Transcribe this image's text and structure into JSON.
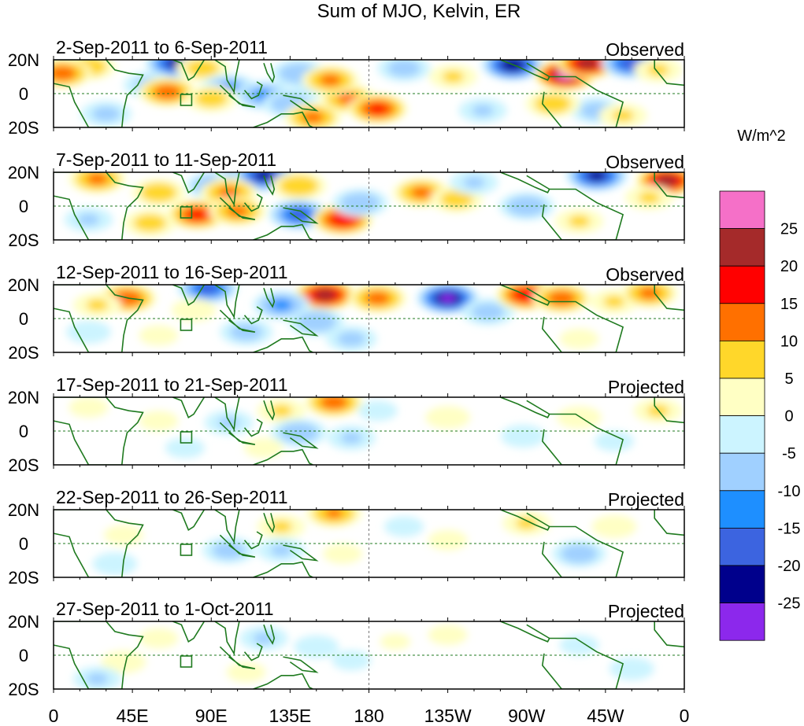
{
  "chart_data": {
    "type": "heatmap",
    "title": "Sum of MJO, Kelvin, ER",
    "units_label": "W/m^2",
    "lat_labels": [
      "20N",
      "0",
      "20S"
    ],
    "lat_range": [
      -20,
      20
    ],
    "lon_range": [
      0,
      360
    ],
    "x_ticks": [
      {
        "lon": 0,
        "label": "0"
      },
      {
        "lon": 45,
        "label": "45E"
      },
      {
        "lon": 90,
        "label": "90E"
      },
      {
        "lon": 135,
        "label": "135E"
      },
      {
        "lon": 180,
        "label": "180"
      },
      {
        "lon": 225,
        "label": "135W"
      },
      {
        "lon": 270,
        "label": "90W"
      },
      {
        "lon": 315,
        "label": "45W"
      },
      {
        "lon": 360,
        "label": "0"
      }
    ],
    "colorbar": {
      "colors": [
        "#f570c8",
        "#a52a2a",
        "#ff0000",
        "#ff7000",
        "#ffd72a",
        "#ffffc4",
        "#ccf4ff",
        "#a0d0ff",
        "#1e8fff",
        "#3c64e0",
        "#00008c",
        "#8c28ec"
      ],
      "tick_labels": [
        "25",
        "20",
        "15",
        "10",
        "5",
        "0",
        "-5",
        "-10",
        "-15",
        "-20",
        "-25"
      ]
    },
    "panels": [
      {
        "date_range": "2-Sep-2011 to 6-Sep-2011",
        "status": "Observed",
        "anomalies": [
          {
            "lon": 20,
            "lat": 16,
            "v": 9
          },
          {
            "lon": 5,
            "lat": 12,
            "v": 14
          },
          {
            "lon": 70,
            "lat": 18,
            "v": -22
          },
          {
            "lon": 85,
            "lat": 15,
            "v": 8
          },
          {
            "lon": 55,
            "lat": 5,
            "v": -8
          },
          {
            "lon": 100,
            "lat": 3,
            "v": -12
          },
          {
            "lon": 65,
            "lat": 1,
            "v": 14
          },
          {
            "lon": 90,
            "lat": -3,
            "v": 8
          },
          {
            "lon": 120,
            "lat": -1,
            "v": -12
          },
          {
            "lon": 135,
            "lat": -6,
            "v": -10
          },
          {
            "lon": 150,
            "lat": 6,
            "v": -8
          },
          {
            "lon": 148,
            "lat": -14,
            "v": 12
          },
          {
            "lon": 168,
            "lat": -3,
            "v": 12
          },
          {
            "lon": 185,
            "lat": -9,
            "v": 17
          },
          {
            "lon": 140,
            "lat": 12,
            "v": -10
          },
          {
            "lon": 158,
            "lat": 8,
            "v": 12
          },
          {
            "lon": 200,
            "lat": 15,
            "v": -8
          },
          {
            "lon": 228,
            "lat": 10,
            "v": 6
          },
          {
            "lon": 262,
            "lat": 17,
            "v": -25
          },
          {
            "lon": 292,
            "lat": 11,
            "v": 27
          },
          {
            "lon": 305,
            "lat": 18,
            "v": 24
          },
          {
            "lon": 330,
            "lat": 18,
            "v": -20
          },
          {
            "lon": 345,
            "lat": 14,
            "v": 6
          },
          {
            "lon": 310,
            "lat": -10,
            "v": -8
          },
          {
            "lon": 285,
            "lat": -6,
            "v": 9
          },
          {
            "lon": 325,
            "lat": -13,
            "v": 6
          },
          {
            "lon": 30,
            "lat": -12,
            "v": -7
          },
          {
            "lon": 245,
            "lat": -10,
            "v": -6
          }
        ]
      },
      {
        "date_range": "7-Sep-2011 to 11-Sep-2011",
        "status": "Observed",
        "anomalies": [
          {
            "lon": 25,
            "lat": 16,
            "v": 12
          },
          {
            "lon": 60,
            "lat": 8,
            "v": 9
          },
          {
            "lon": 92,
            "lat": 12,
            "v": -12
          },
          {
            "lon": 110,
            "lat": 16,
            "v": -14
          },
          {
            "lon": 120,
            "lat": 18,
            "v": -22
          },
          {
            "lon": 140,
            "lat": 12,
            "v": 10
          },
          {
            "lon": 100,
            "lat": 8,
            "v": 12
          },
          {
            "lon": 82,
            "lat": -5,
            "v": 17
          },
          {
            "lon": 105,
            "lat": -3,
            "v": 12
          },
          {
            "lon": 140,
            "lat": -5,
            "v": -18
          },
          {
            "lon": 165,
            "lat": -8,
            "v": 20
          },
          {
            "lon": 175,
            "lat": 2,
            "v": -10
          },
          {
            "lon": 210,
            "lat": 8,
            "v": 12
          },
          {
            "lon": 230,
            "lat": 4,
            "v": 8
          },
          {
            "lon": 240,
            "lat": 14,
            "v": -6
          },
          {
            "lon": 270,
            "lat": 0,
            "v": -10
          },
          {
            "lon": 300,
            "lat": -9,
            "v": 6
          },
          {
            "lon": 310,
            "lat": 18,
            "v": -22
          },
          {
            "lon": 350,
            "lat": 15,
            "v": 24
          },
          {
            "lon": 340,
            "lat": 5,
            "v": 6
          },
          {
            "lon": 55,
            "lat": -10,
            "v": 8
          },
          {
            "lon": 20,
            "lat": -8,
            "v": -6
          }
        ]
      },
      {
        "date_range": "12-Sep-2011 to 16-Sep-2011",
        "status": "Observed",
        "anomalies": [
          {
            "lon": 42,
            "lat": 12,
            "v": 15
          },
          {
            "lon": 25,
            "lat": 8,
            "v": 6
          },
          {
            "lon": 88,
            "lat": 18,
            "v": -18
          },
          {
            "lon": 80,
            "lat": 5,
            "v": 5
          },
          {
            "lon": 155,
            "lat": 14,
            "v": 24
          },
          {
            "lon": 185,
            "lat": 12,
            "v": 13
          },
          {
            "lon": 130,
            "lat": 8,
            "v": -12
          },
          {
            "lon": 150,
            "lat": -2,
            "v": -10
          },
          {
            "lon": 225,
            "lat": 12,
            "v": -26
          },
          {
            "lon": 248,
            "lat": 4,
            "v": -8
          },
          {
            "lon": 270,
            "lat": 14,
            "v": 20
          },
          {
            "lon": 290,
            "lat": 12,
            "v": 14
          },
          {
            "lon": 320,
            "lat": 10,
            "v": 6
          },
          {
            "lon": 340,
            "lat": 15,
            "v": 12
          },
          {
            "lon": 110,
            "lat": -8,
            "v": -8
          },
          {
            "lon": 170,
            "lat": -12,
            "v": -7
          },
          {
            "lon": 60,
            "lat": -10,
            "v": 4
          },
          {
            "lon": 300,
            "lat": -12,
            "v": 4
          },
          {
            "lon": 20,
            "lat": -8,
            "v": -5
          }
        ]
      },
      {
        "date_range": "17-Sep-2011 to 21-Sep-2011",
        "status": "Projected",
        "anomalies": [
          {
            "lon": 20,
            "lat": 14,
            "v": 4
          },
          {
            "lon": 60,
            "lat": 6,
            "v": 4
          },
          {
            "lon": 160,
            "lat": 17,
            "v": 14
          },
          {
            "lon": 130,
            "lat": 12,
            "v": 6
          },
          {
            "lon": 100,
            "lat": 5,
            "v": -6
          },
          {
            "lon": 140,
            "lat": -1,
            "v": -10
          },
          {
            "lon": 170,
            "lat": -4,
            "v": -6
          },
          {
            "lon": 120,
            "lat": -10,
            "v": 4
          },
          {
            "lon": 225,
            "lat": 8,
            "v": 5
          },
          {
            "lon": 300,
            "lat": 8,
            "v": 5
          },
          {
            "lon": 268,
            "lat": -3,
            "v": -5
          },
          {
            "lon": 345,
            "lat": 12,
            "v": 6
          },
          {
            "lon": 320,
            "lat": -6,
            "v": -4
          },
          {
            "lon": 75,
            "lat": -10,
            "v": -4
          },
          {
            "lon": 185,
            "lat": 12,
            "v": -4
          }
        ]
      },
      {
        "date_range": "22-Sep-2011 to 26-Sep-2011",
        "status": "Projected",
        "anomalies": [
          {
            "lon": 160,
            "lat": 18,
            "v": 11
          },
          {
            "lon": 130,
            "lat": 10,
            "v": 6
          },
          {
            "lon": 40,
            "lat": 5,
            "v": 4
          },
          {
            "lon": 100,
            "lat": -4,
            "v": -8
          },
          {
            "lon": 130,
            "lat": -4,
            "v": -6
          },
          {
            "lon": 165,
            "lat": -6,
            "v": 4
          },
          {
            "lon": 270,
            "lat": 12,
            "v": 6
          },
          {
            "lon": 300,
            "lat": -6,
            "v": -9
          },
          {
            "lon": 320,
            "lat": 10,
            "v": 5
          },
          {
            "lon": 225,
            "lat": 2,
            "v": 4
          },
          {
            "lon": 35,
            "lat": -12,
            "v": -5
          },
          {
            "lon": 200,
            "lat": 10,
            "v": -4
          }
        ]
      },
      {
        "date_range": "27-Sep-2011 to 1-Oct-2011",
        "status": "Projected",
        "anomalies": [
          {
            "lon": 120,
            "lat": 10,
            "v": -6
          },
          {
            "lon": 150,
            "lat": 5,
            "v": -5
          },
          {
            "lon": 60,
            "lat": 10,
            "v": 4
          },
          {
            "lon": 40,
            "lat": -4,
            "v": 5
          },
          {
            "lon": 110,
            "lat": -10,
            "v": 4
          },
          {
            "lon": 170,
            "lat": -3,
            "v": -4
          },
          {
            "lon": 225,
            "lat": 12,
            "v": 4
          },
          {
            "lon": 300,
            "lat": 6,
            "v": -4
          },
          {
            "lon": 330,
            "lat": -8,
            "v": -5
          },
          {
            "lon": 25,
            "lat": -14,
            "v": -6
          },
          {
            "lon": 195,
            "lat": 8,
            "v": 3
          }
        ]
      }
    ]
  }
}
